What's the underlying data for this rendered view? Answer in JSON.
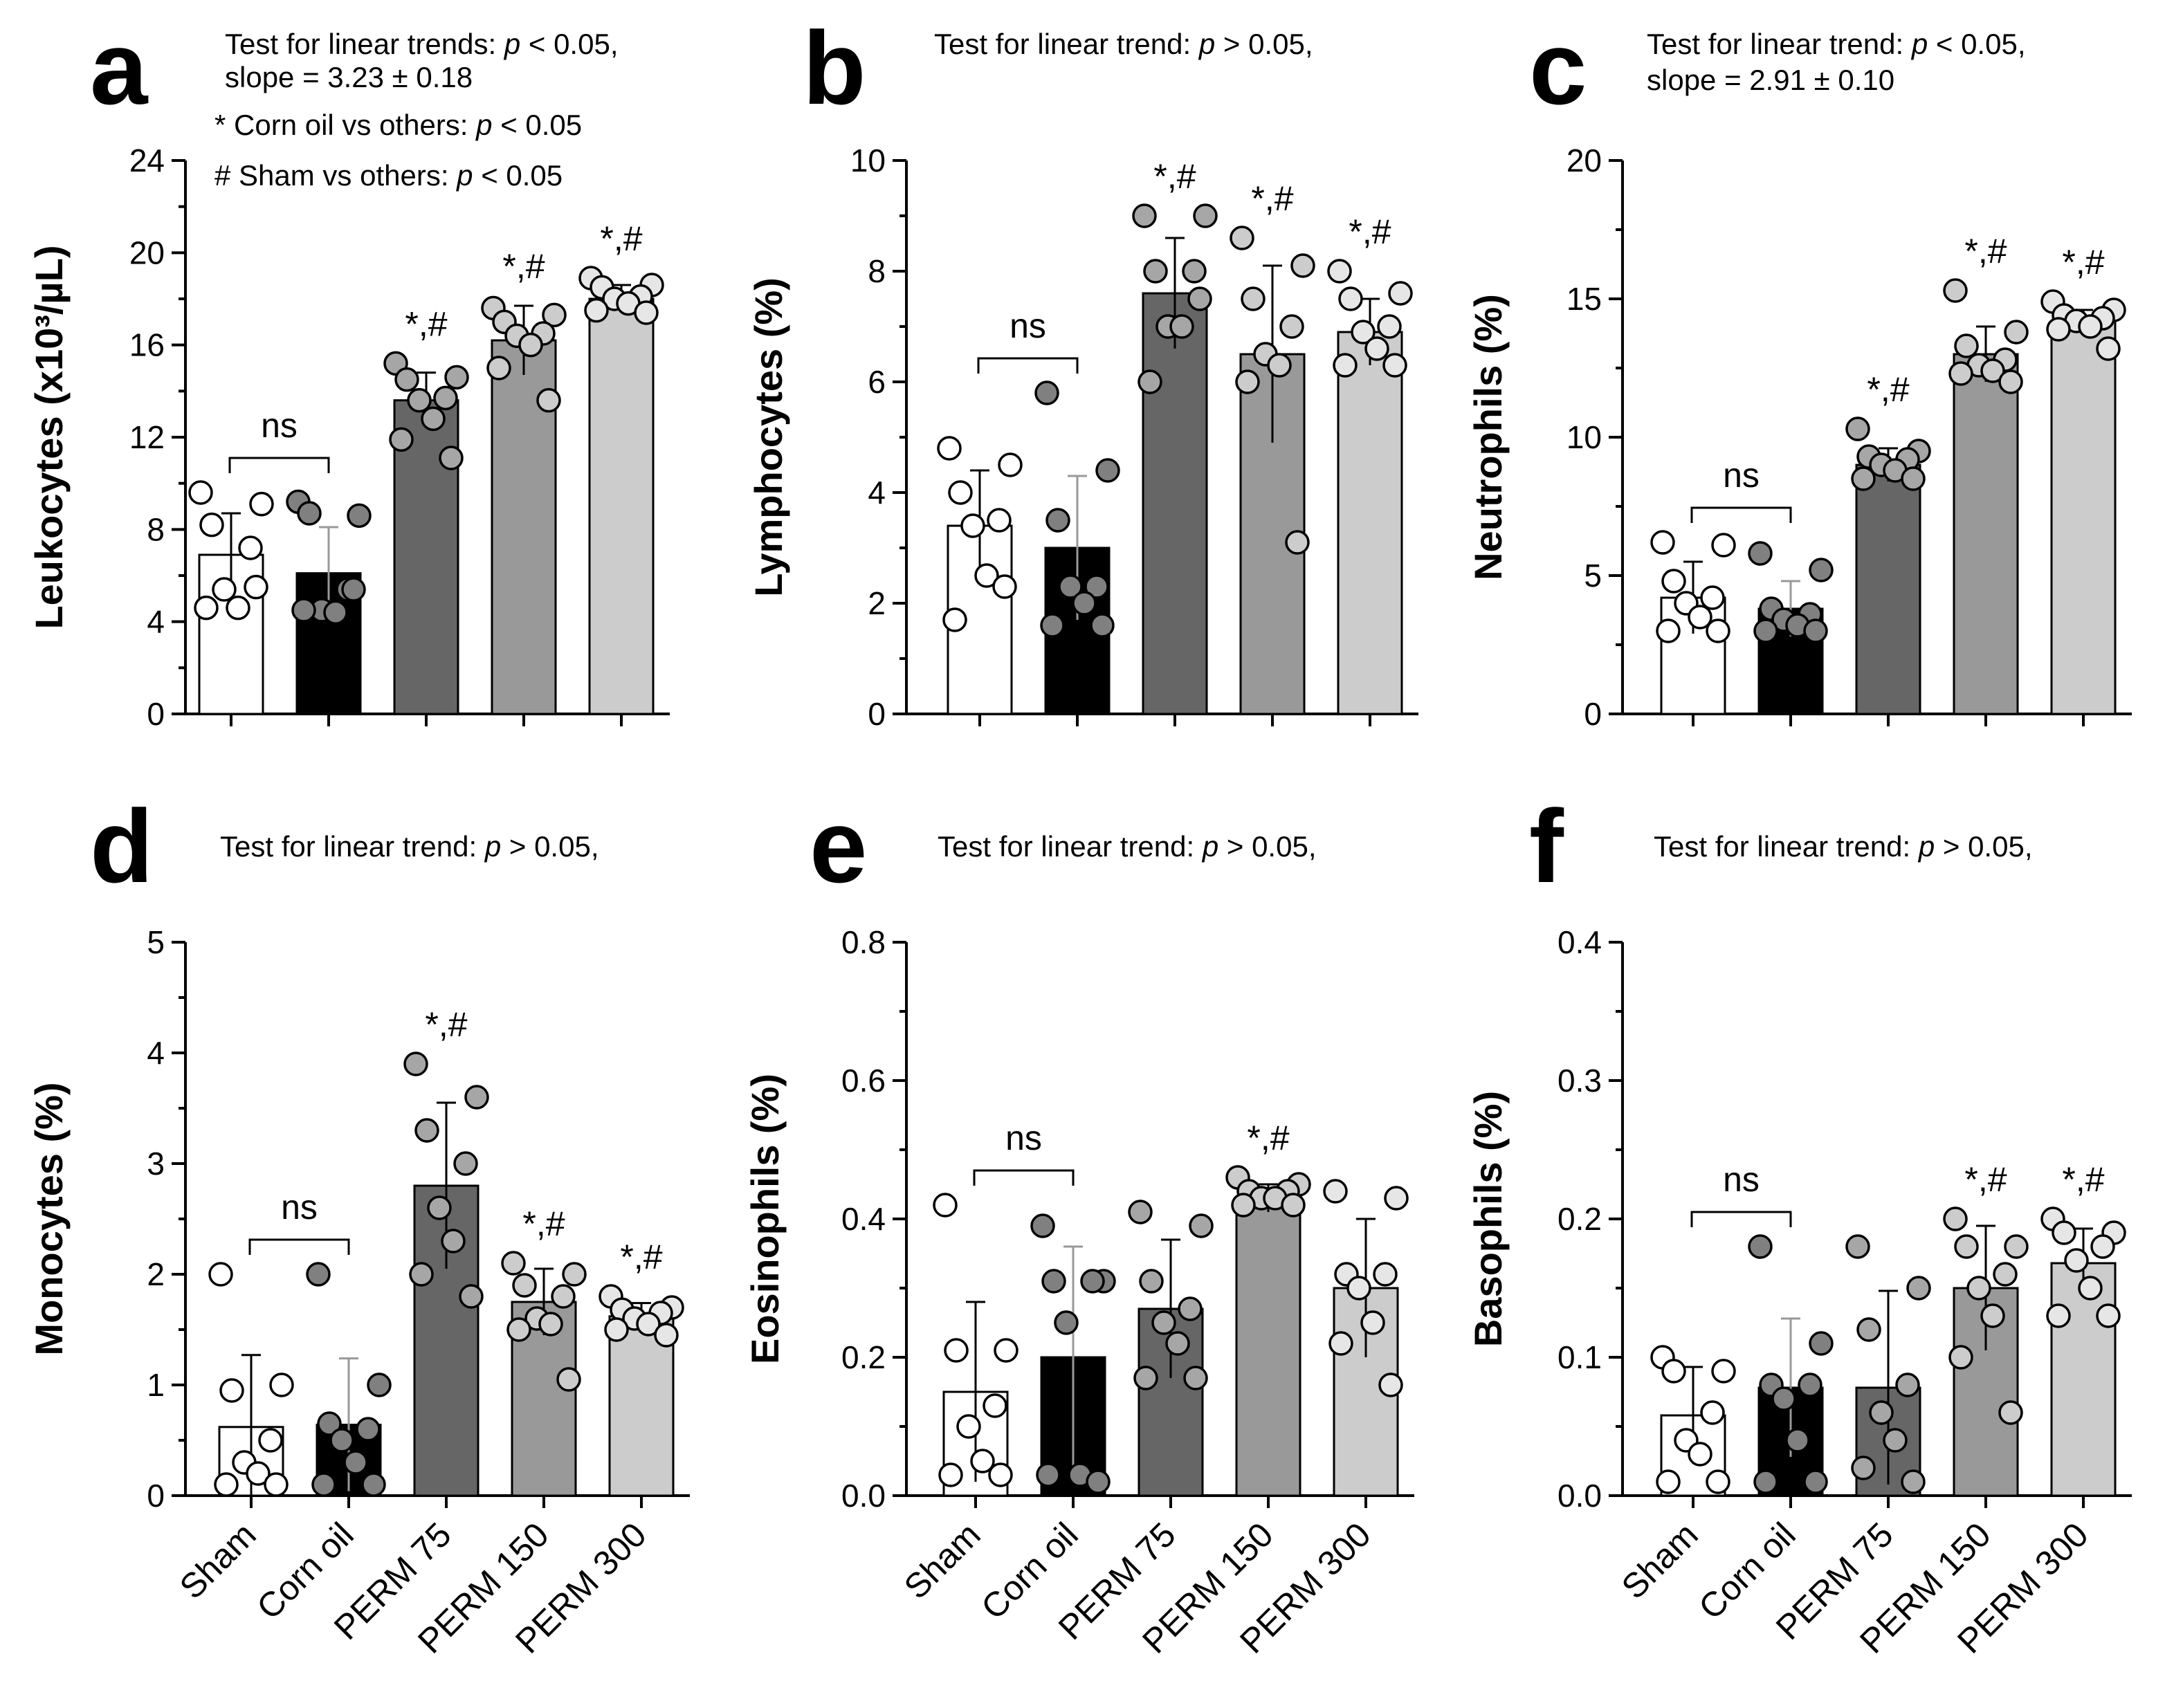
{
  "categories": [
    "Sham",
    "Corn oil",
    "PERM 75",
    "PERM 150",
    "PERM 300"
  ],
  "bar_colors": [
    "#ffffff",
    "#000000",
    "#666666",
    "#999999",
    "#cccccc"
  ],
  "dot_colors": [
    "#ffffff",
    "#808080",
    "#a6a6a6",
    "#cccccc",
    "#e6e6e6"
  ],
  "ns_label": "ns",
  "sig_label": "*,#",
  "chart_data": [
    {
      "type": "bar",
      "panel": "a",
      "ylabel": "Leukocytes (x10³/µL)",
      "ylim": [
        0,
        24
      ],
      "yticks": [
        0,
        4,
        8,
        12,
        16,
        20,
        24
      ],
      "annotations": [
        "Test for linear trends: p < 0.05,",
        "slope = 3.23 ± 0.18",
        "* Corn oil vs others: p < 0.05",
        "# Sham vs others: p < 0.05"
      ],
      "values": [
        6.9,
        6.1,
        13.6,
        16.2,
        18.0
      ],
      "errors": [
        1.8,
        2.0,
        1.2,
        1.5,
        0.6
      ],
      "points": [
        [
          9.6,
          9.1,
          8.2,
          7.2,
          5.4,
          4.6,
          4.6,
          5.5
        ],
        [
          9.2,
          8.6,
          8.7,
          5.4,
          4.5,
          4.4,
          4.5,
          5.4
        ],
        [
          15.2,
          14.6,
          14.5,
          13.7,
          13.6,
          12.8,
          11.9,
          11.1
        ],
        [
          17.6,
          17.3,
          17.0,
          16.5,
          16.4,
          16.0,
          15.0,
          13.6
        ],
        [
          18.9,
          18.6,
          18.5,
          18.1,
          18.0,
          17.8,
          17.5,
          17.4
        ]
      ],
      "markers": [
        "ns",
        "",
        "*,#",
        "*,#",
        "*,#"
      ]
    },
    {
      "type": "bar",
      "panel": "b",
      "ylabel": "Lymphocytes (%)",
      "ylim": [
        0,
        10
      ],
      "yticks": [
        0,
        2,
        4,
        6,
        8,
        10
      ],
      "annotations": [
        "Test for linear trend: p > 0.05,"
      ],
      "values": [
        3.4,
        3.0,
        7.6,
        6.5,
        6.9
      ],
      "errors": [
        1.0,
        1.3,
        1.0,
        1.6,
        0.6
      ],
      "points": [
        [
          4.8,
          4.5,
          4.0,
          3.5,
          3.4,
          2.5,
          1.7,
          2.3
        ],
        [
          5.8,
          4.4,
          3.5,
          2.3,
          2.3,
          2.0,
          1.6,
          1.6
        ],
        [
          9.0,
          9.0,
          8.0,
          8.0,
          7.0,
          7.0,
          6.0,
          7.5
        ],
        [
          8.6,
          8.1,
          7.5,
          7.0,
          6.5,
          6.3,
          6.0,
          3.1
        ],
        [
          8.0,
          7.6,
          7.5,
          7.0,
          6.9,
          6.6,
          6.3,
          6.3
        ]
      ],
      "markers": [
        "ns",
        "",
        "*,#",
        "*,#",
        "*,#"
      ]
    },
    {
      "type": "bar",
      "panel": "c",
      "ylabel": "Neutrophils (%)",
      "ylim": [
        0,
        20
      ],
      "yticks": [
        0,
        5,
        10,
        15,
        20
      ],
      "annotations": [
        "Test for linear trend: p < 0.05,",
        "slope = 2.91 ± 0.10"
      ],
      "values": [
        4.2,
        3.8,
        9.0,
        13.0,
        14.2
      ],
      "errors": [
        1.3,
        1.0,
        0.6,
        1.0,
        0.4
      ],
      "points": [
        [
          6.2,
          6.1,
          4.8,
          4.2,
          4.0,
          3.5,
          3.0,
          3.0
        ],
        [
          5.8,
          5.2,
          3.8,
          3.6,
          3.4,
          3.2,
          3.0,
          3.0
        ],
        [
          10.3,
          9.5,
          9.3,
          9.2,
          9.0,
          8.8,
          8.5,
          8.5
        ],
        [
          15.3,
          13.8,
          13.3,
          12.8,
          12.6,
          12.4,
          12.3,
          12.0
        ],
        [
          14.9,
          14.6,
          14.4,
          14.3,
          14.2,
          14.0,
          13.9,
          13.2
        ]
      ],
      "markers": [
        "ns",
        "",
        "*,#",
        "*,#",
        "*,#"
      ]
    },
    {
      "type": "bar",
      "panel": "d",
      "ylabel": "Monocytes (%)",
      "ylim": [
        0,
        5
      ],
      "yticks": [
        0,
        1,
        2,
        3,
        4,
        5
      ],
      "annotations": [
        "Test for linear trend: p > 0.05,"
      ],
      "values": [
        0.62,
        0.64,
        2.8,
        1.75,
        1.62
      ],
      "errors": [
        0.65,
        0.6,
        0.75,
        0.3,
        0.12
      ],
      "points": [
        [
          2.0,
          1.0,
          0.95,
          0.5,
          0.3,
          0.2,
          0.1,
          0.1
        ],
        [
          2.0,
          1.0,
          0.65,
          0.6,
          0.5,
          0.3,
          0.1,
          0.1
        ],
        [
          3.9,
          3.6,
          3.3,
          3.0,
          2.6,
          2.3,
          2.0,
          1.8
        ],
        [
          2.1,
          2.0,
          1.9,
          1.8,
          1.6,
          1.55,
          1.5,
          1.05
        ],
        [
          1.8,
          1.7,
          1.68,
          1.65,
          1.6,
          1.55,
          1.5,
          1.45
        ]
      ],
      "markers": [
        "ns",
        "",
        "*,#",
        "*,#",
        "*,#"
      ]
    },
    {
      "type": "bar",
      "panel": "e",
      "ylabel": "Eosinophils (%)",
      "ylim": [
        0,
        0.8
      ],
      "yticks": [
        "0.0",
        "0.2",
        "0.4",
        "0.6",
        "0.8"
      ],
      "annotations": [
        "Test for linear trend: p > 0.05,"
      ],
      "values": [
        0.15,
        0.2,
        0.27,
        0.43,
        0.3
      ],
      "errors": [
        0.13,
        0.16,
        0.1,
        0.02,
        0.1
      ],
      "points": [
        [
          0.42,
          0.21,
          0.21,
          0.13,
          0.1,
          0.05,
          0.03,
          0.03
        ],
        [
          0.39,
          0.31,
          0.31,
          0.31,
          0.25,
          0.03,
          0.03,
          0.02
        ],
        [
          0.41,
          0.39,
          0.31,
          0.27,
          0.25,
          0.22,
          0.17,
          0.17
        ],
        [
          0.46,
          0.45,
          0.44,
          0.44,
          0.43,
          0.43,
          0.42,
          0.42
        ],
        [
          0.44,
          0.43,
          0.32,
          0.32,
          0.3,
          0.25,
          0.22,
          0.16
        ]
      ],
      "markers": [
        "ns",
        "",
        "",
        "*,#",
        ""
      ]
    },
    {
      "type": "bar",
      "panel": "f",
      "ylabel": "Basophils (%)",
      "ylim": [
        0,
        0.4
      ],
      "yticks": [
        "0.0",
        "0.1",
        "0.2",
        "0.3",
        "0.4"
      ],
      "annotations": [
        "Test for linear trend: p > 0.05,"
      ],
      "values": [
        0.058,
        0.078,
        0.078,
        0.15,
        0.168
      ],
      "errors": [
        0.035,
        0.05,
        0.07,
        0.045,
        0.025
      ],
      "points": [
        [
          0.1,
          0.09,
          0.09,
          0.06,
          0.04,
          0.03,
          0.01,
          0.01
        ],
        [
          0.18,
          0.11,
          0.08,
          0.08,
          0.07,
          0.04,
          0.01,
          0.01
        ],
        [
          0.18,
          0.15,
          0.12,
          0.08,
          0.06,
          0.04,
          0.02,
          0.01
        ],
        [
          0.2,
          0.18,
          0.18,
          0.16,
          0.15,
          0.13,
          0.1,
          0.06
        ],
        [
          0.2,
          0.19,
          0.19,
          0.18,
          0.17,
          0.15,
          0.13,
          0.13
        ]
      ],
      "markers": [
        "ns",
        "",
        "",
        "*,#",
        "*,#"
      ]
    }
  ]
}
